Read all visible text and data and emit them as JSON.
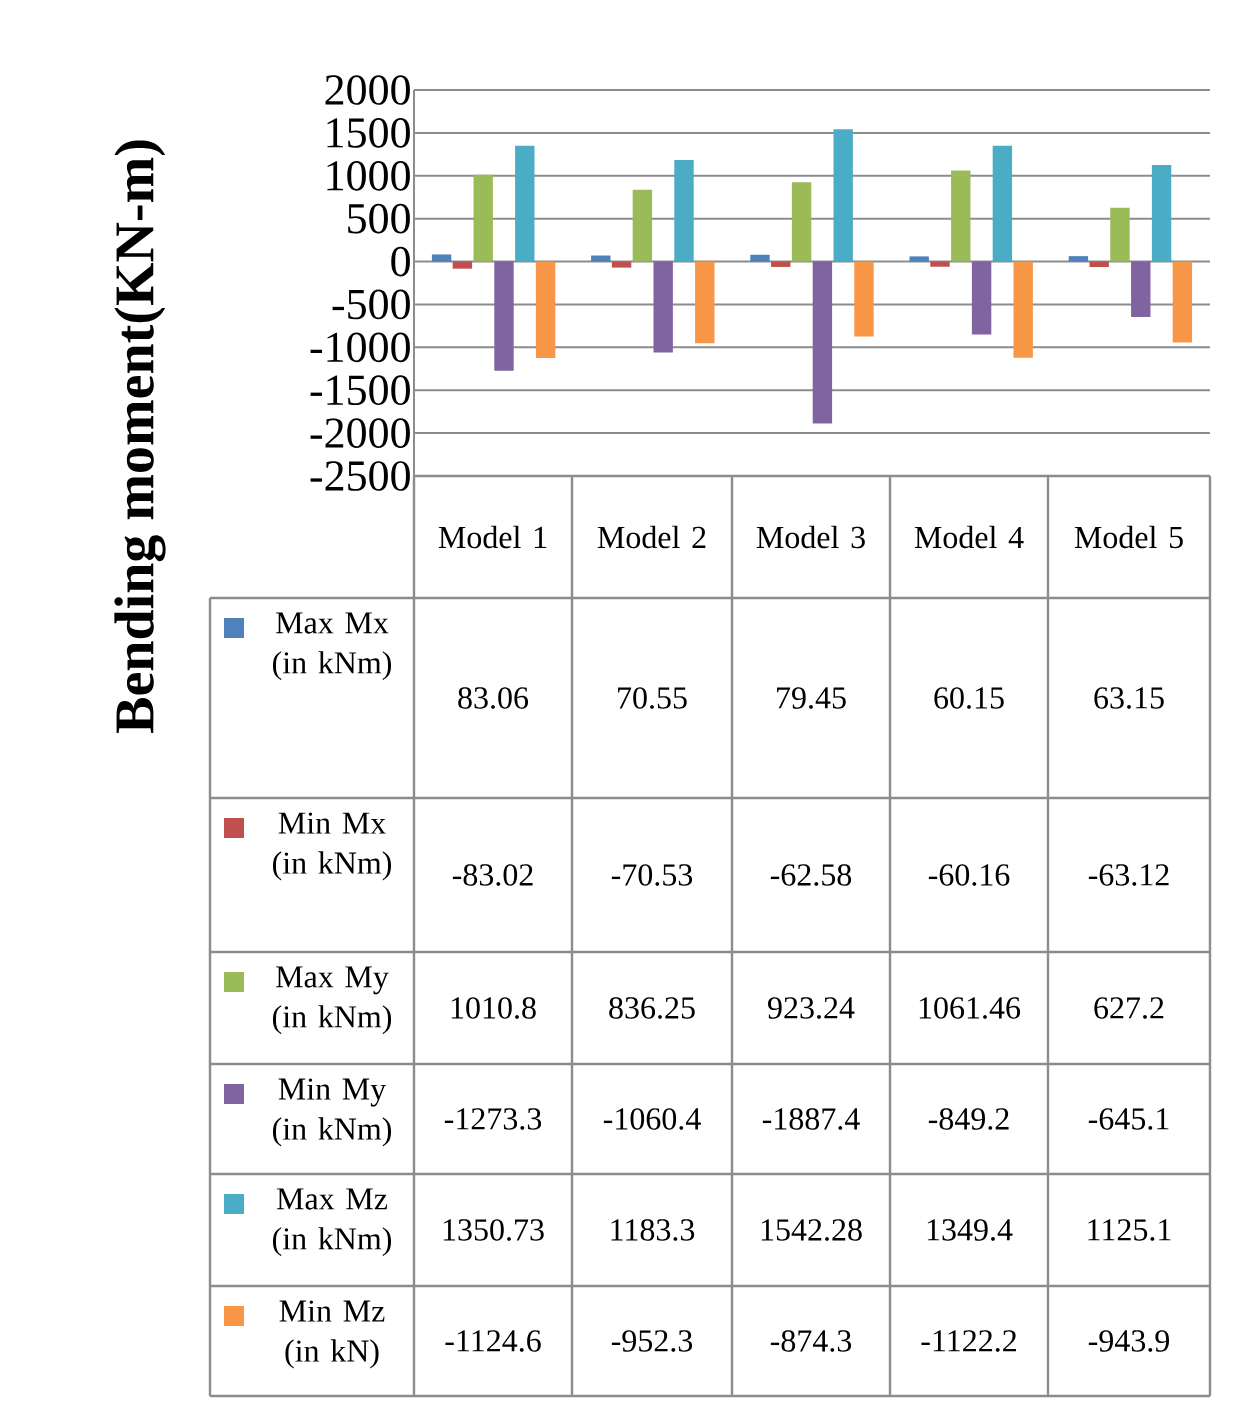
{
  "chart_data": {
    "type": "bar",
    "ylabel": "Bending moment(KN-m)",
    "categories": [
      "Model 1",
      "Model 2",
      "Model 3",
      "Model 4",
      "Model 5"
    ],
    "series": [
      {
        "name": "Max Mx (in kNm)",
        "color": "#4f81bd",
        "values": [
          83.06,
          70.55,
          79.45,
          60.15,
          63.15
        ]
      },
      {
        "name": "Min Mx (in kNm)",
        "color": "#c0504d",
        "values": [
          -83.02,
          -70.53,
          -62.58,
          -60.16,
          -63.12
        ]
      },
      {
        "name": "Max My (in kNm)",
        "color": "#9bbb59",
        "values": [
          1010.8,
          836.25,
          923.24,
          1061.46,
          627.2
        ]
      },
      {
        "name": "Min My (in kNm)",
        "color": "#8064a2",
        "values": [
          -1273.3,
          -1060.4,
          -1887.4,
          -849.2,
          -645.1
        ]
      },
      {
        "name": "Max Mz (in kNm)",
        "color": "#4bacc6",
        "values": [
          1350.73,
          1183.3,
          1542.28,
          1349.4,
          1125.1
        ]
      },
      {
        "name": "Min Mz (in kN)",
        "color": "#f79646",
        "values": [
          -1124.6,
          -952.3,
          -874.3,
          -1122.2,
          -943.9
        ]
      }
    ],
    "ylim": [
      -2500,
      2000
    ],
    "yticks": [
      2000,
      1500,
      1000,
      500,
      0,
      -500,
      -1000,
      -1500,
      -2000,
      -2500
    ],
    "grid": "y",
    "legend": "left",
    "data_labels": true
  }
}
